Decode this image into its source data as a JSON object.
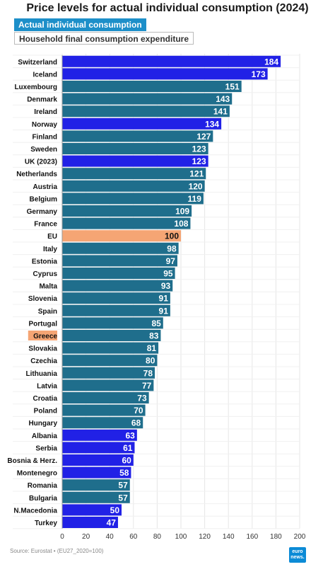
{
  "header": {
    "title": "Price levels for actual individual consumption (2024)",
    "tabs": [
      "Actual individual consumption",
      "Household final consumption expenditure"
    ]
  },
  "footer": {
    "source": "Source: Eurostat • (EU27_2020=100)",
    "logo_top": "euro",
    "logo_bottom": "news."
  },
  "colors": {
    "standard": "#1f6e8c",
    "non_eu": "#2121e6",
    "eu": "#f5a574",
    "highlight_label_bg": "#f5a574",
    "grid": "#e6e6e6"
  },
  "chart_data": {
    "type": "bar",
    "orientation": "horizontal",
    "title": "Price levels for actual individual consumption (2024)",
    "xlabel": "",
    "ylabel": "",
    "xlim": [
      0,
      200
    ],
    "xticks": [
      0,
      20,
      40,
      60,
      80,
      100,
      120,
      140,
      160,
      180,
      200
    ],
    "grid": true,
    "categories": [
      "Switzerland",
      "Iceland",
      "Luxembourg",
      "Denmark",
      "Ireland",
      "Norway",
      "Finland",
      "Sweden",
      "UK (2023)",
      "Netherlands",
      "Austria",
      "Belgium",
      "Germany",
      "France",
      "EU",
      "Italy",
      "Estonia",
      "Cyprus",
      "Malta",
      "Slovenia",
      "Spain",
      "Portugal",
      "Greece",
      "Slovakia",
      "Czechia",
      "Lithuania",
      "Latvia",
      "Croatia",
      "Poland",
      "Hungary",
      "Albania",
      "Serbia",
      "Bosnia & Herz.",
      "Montenegro",
      "Romania",
      "Bulgaria",
      "N.Macedonia",
      "Turkey"
    ],
    "values": [
      184,
      173,
      151,
      143,
      141,
      134,
      127,
      123,
      123,
      121,
      120,
      119,
      109,
      108,
      100,
      98,
      97,
      95,
      93,
      91,
      91,
      85,
      83,
      81,
      80,
      78,
      77,
      73,
      70,
      68,
      63,
      61,
      60,
      58,
      57,
      57,
      50,
      47
    ],
    "bar_groups": [
      "non_eu",
      "non_eu",
      "standard",
      "standard",
      "standard",
      "non_eu",
      "standard",
      "standard",
      "non_eu",
      "standard",
      "standard",
      "standard",
      "standard",
      "standard",
      "eu",
      "standard",
      "standard",
      "standard",
      "standard",
      "standard",
      "standard",
      "standard",
      "standard",
      "standard",
      "standard",
      "standard",
      "standard",
      "standard",
      "standard",
      "standard",
      "non_eu",
      "non_eu",
      "non_eu",
      "non_eu",
      "standard",
      "standard",
      "non_eu",
      "non_eu"
    ],
    "highlighted_label": "Greece"
  }
}
